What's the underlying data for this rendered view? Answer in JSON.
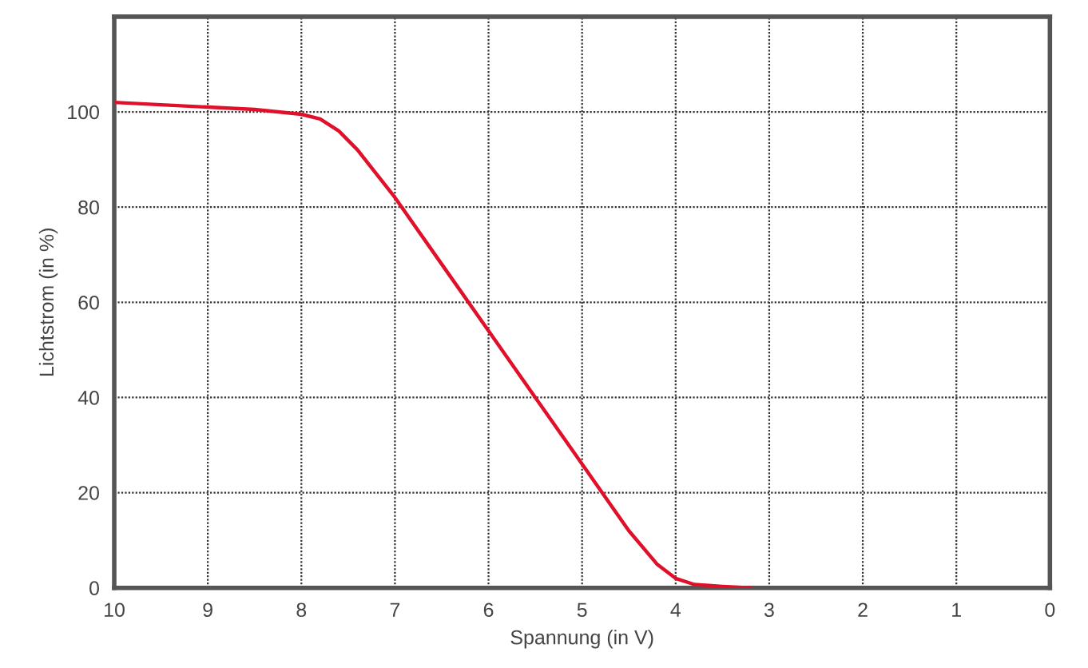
{
  "chart_data": {
    "type": "line",
    "xlabel": "Spannung (in V)",
    "ylabel": "Lichtstrom (in %)",
    "xlim": [
      10,
      0
    ],
    "ylim": [
      0,
      120
    ],
    "xticks": [
      10,
      9,
      8,
      7,
      6,
      5,
      4,
      3,
      2,
      1,
      0
    ],
    "yticks": [
      0,
      20,
      40,
      60,
      80,
      100,
      {
        "value": 120,
        "label": null
      }
    ],
    "grid": true,
    "marker": "none",
    "line_style": "solid",
    "series": [
      {
        "color": "#e0102a",
        "x": [
          10,
          9.5,
          9,
          8.5,
          8,
          7.8,
          7.6,
          7.4,
          7.2,
          7,
          6.5,
          6,
          5.5,
          5,
          4.5,
          4.2,
          4,
          3.8,
          3.5,
          3.2
        ],
        "values": [
          102,
          101.5,
          101,
          100.5,
          99.5,
          98.5,
          96,
          92,
          87,
          82,
          68,
          54,
          40,
          26,
          12,
          5,
          2,
          0.7,
          0.3,
          0
        ]
      }
    ]
  }
}
